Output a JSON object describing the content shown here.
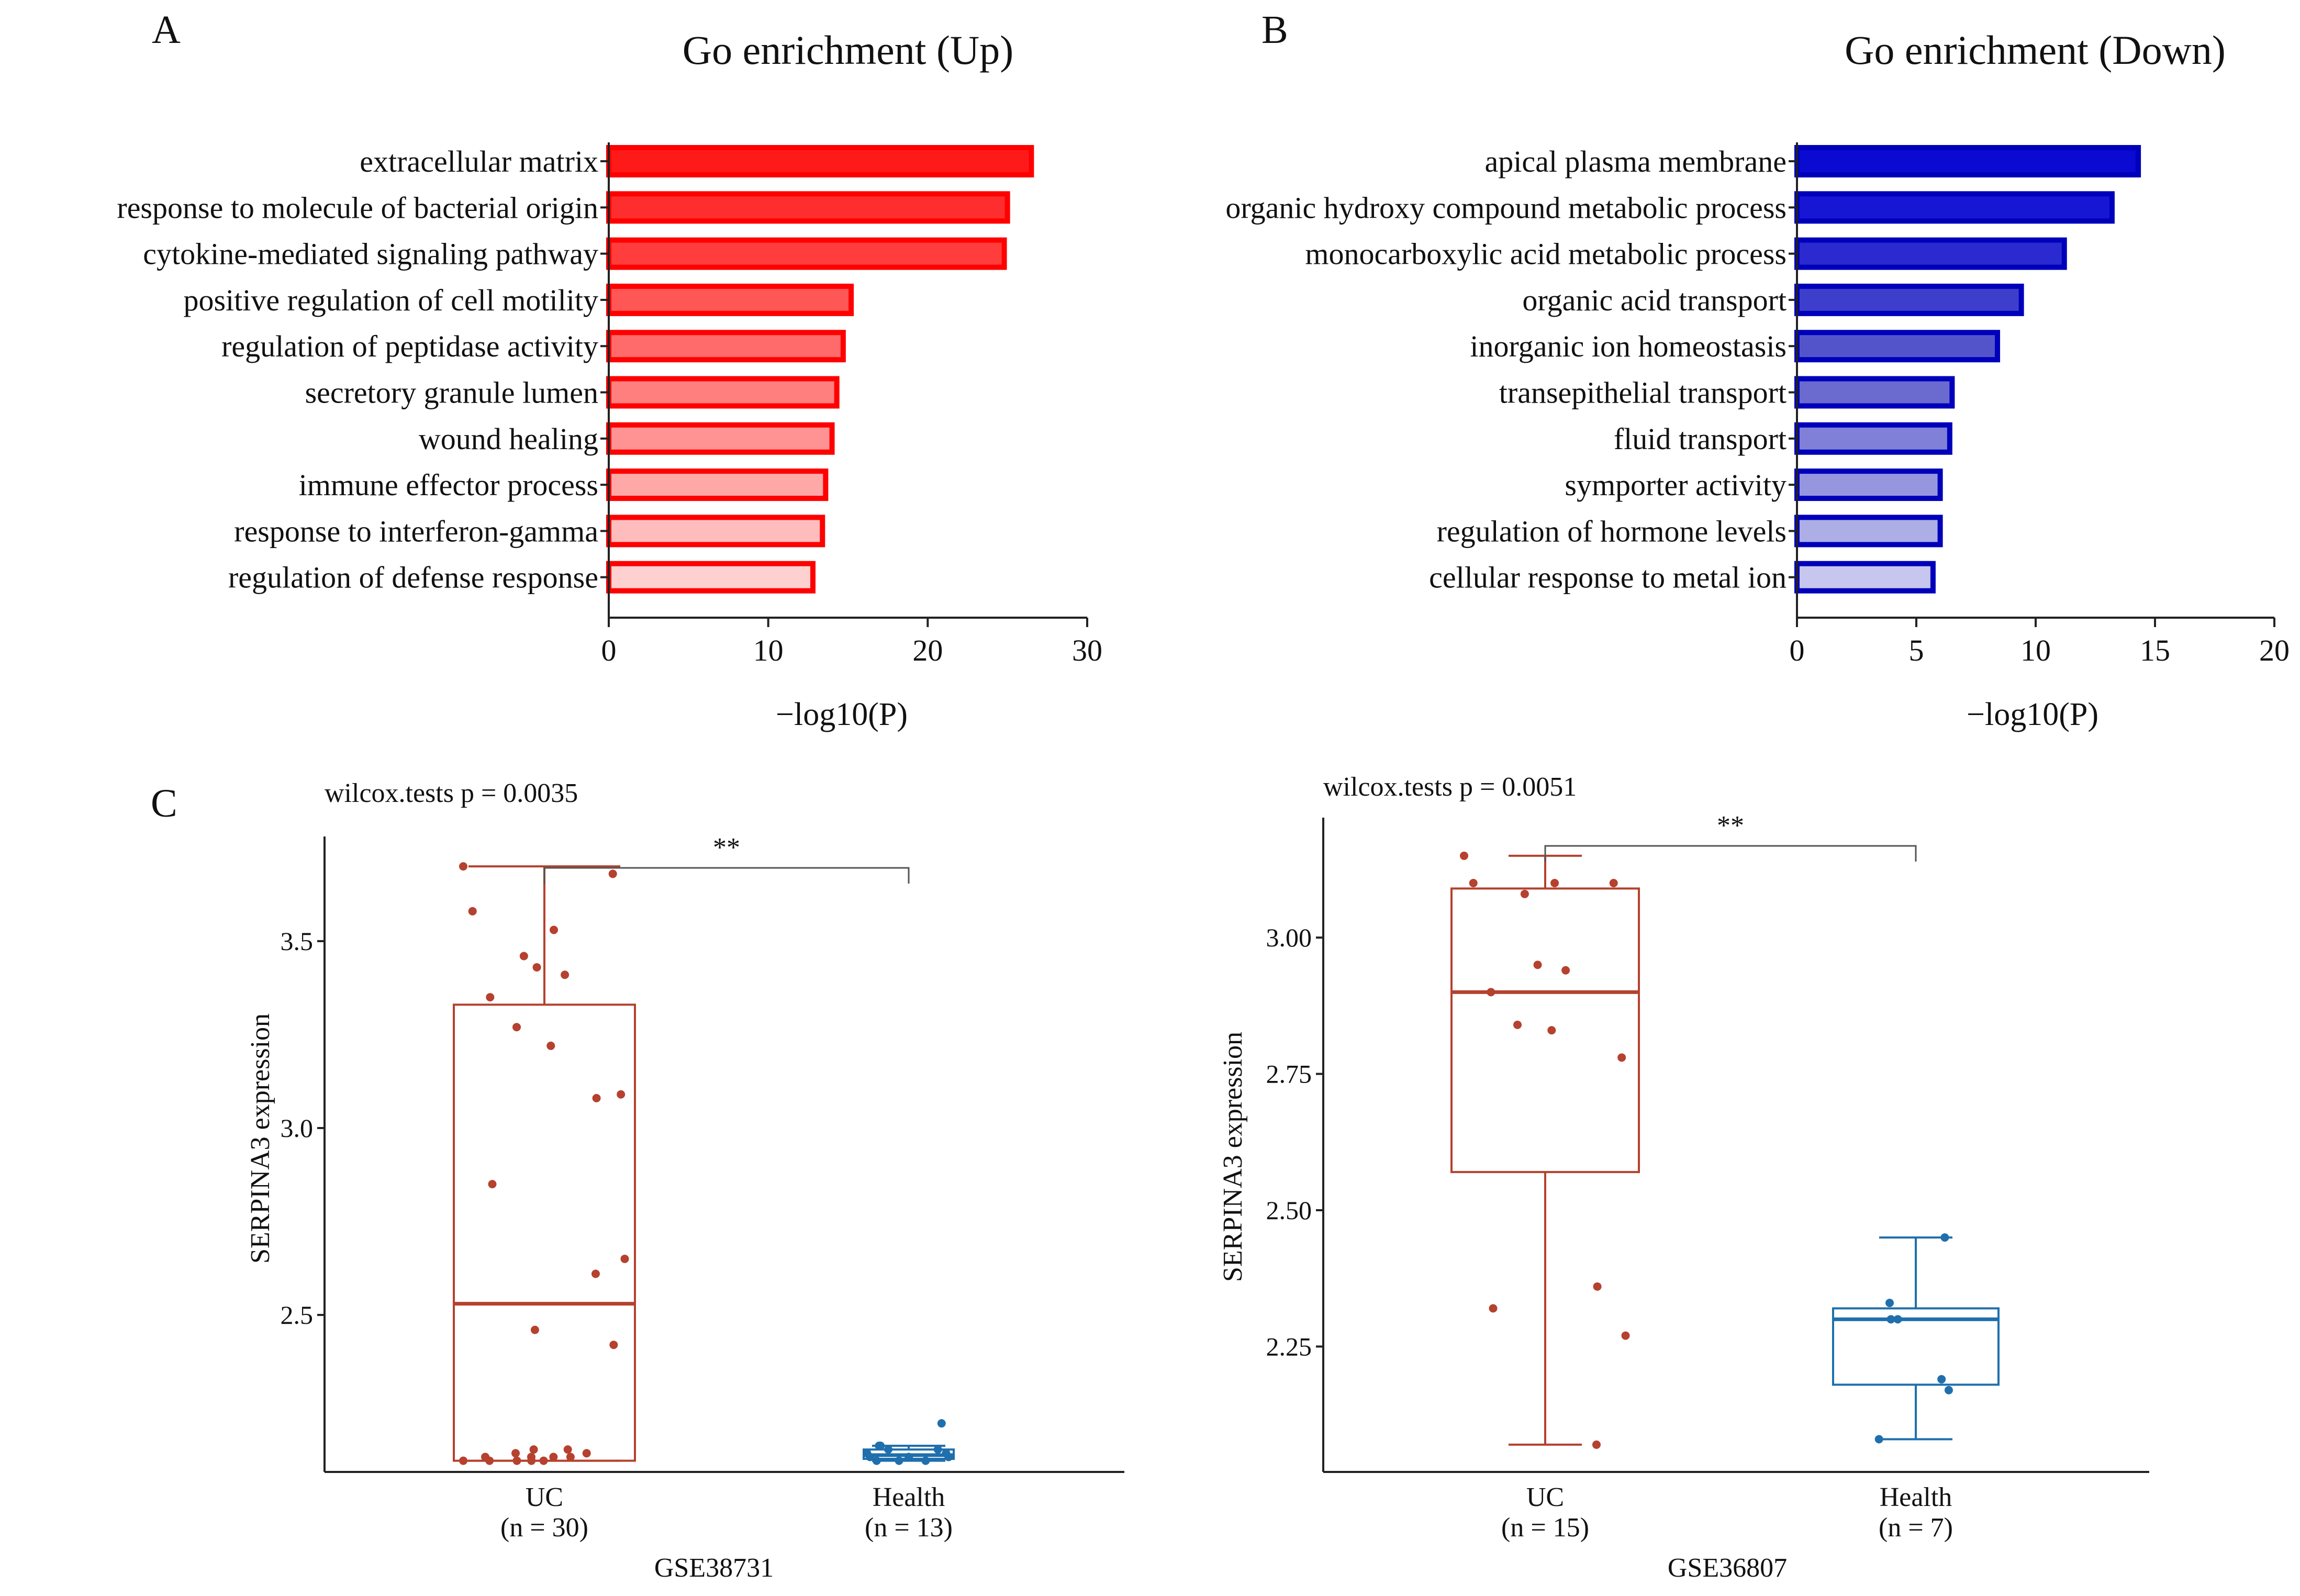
{
  "chart_data": [
    {
      "id": "A",
      "type": "bar",
      "orientation": "horizontal",
      "panel_label": "A",
      "title": "Go enrichment (Up)",
      "xlabel": "−log10(P)",
      "xlim": [
        0,
        30
      ],
      "xticks": [
        0,
        10,
        20,
        30
      ],
      "categories": [
        "extracellular matrix",
        "response to molecule of bacterial origin",
        "cytokine-mediated signaling pathway",
        "positive regulation of cell motility",
        "regulation of peptidase activity",
        "secretory granule lumen",
        "wound healing",
        "immune effector process",
        "response to interferon-gamma",
        "regulation of defense response"
      ],
      "values": [
        26.5,
        25.0,
        24.8,
        15.2,
        14.7,
        14.3,
        14.0,
        13.6,
        13.4,
        12.8
      ],
      "colors": {
        "outline": "#ff0000",
        "fills": [
          "#ff1a1a",
          "#ff2e2e",
          "#ff3d3d",
          "#ff5656",
          "#ff6b6b",
          "#ff7f7f",
          "#ff9393",
          "#ffa8a8",
          "#ffbcbc",
          "#ffd0d0"
        ]
      }
    },
    {
      "id": "B",
      "type": "bar",
      "orientation": "horizontal",
      "panel_label": "B",
      "title": "Go enrichment (Down)",
      "xlabel": "−log10(P)",
      "xlim": [
        0,
        20
      ],
      "xticks": [
        0,
        5,
        10,
        15,
        20
      ],
      "categories": [
        "apical plasma membrane",
        "organic hydroxy compound metabolic process",
        "monocarboxylic acid metabolic process",
        "organic acid transport",
        "inorganic ion homeostasis",
        "transepithelial transport",
        "fluid transport",
        "symporter activity",
        "regulation of hormone levels",
        "cellular response to metal ion"
      ],
      "values": [
        14.3,
        13.2,
        11.2,
        9.4,
        8.4,
        6.5,
        6.4,
        6.0,
        6.0,
        5.7
      ],
      "colors": {
        "outline": "#0000bb",
        "fills": [
          "#0a0ad2",
          "#1616d4",
          "#2a2ad0",
          "#3e3ecc",
          "#5454ca",
          "#6a6acf",
          "#8080d8",
          "#9696df",
          "#aeaee6",
          "#c6c6ee"
        ]
      }
    },
    {
      "id": "C1",
      "type": "box",
      "panel_label": "C",
      "title": "wilcox.tests p = 0.0035",
      "ylabel": "SERPINA3 expression",
      "xlabel": "GSE38731",
      "ylim": [
        2.08,
        3.78
      ],
      "yticks": [
        "2.5",
        "3.0",
        "3.5"
      ],
      "significance": "**",
      "groups": [
        {
          "name": "UC",
          "n_label": "(n = 30)",
          "color": "#b5412e",
          "whisker_low": 2.11,
          "q1": 2.11,
          "median": 2.53,
          "q3": 3.33,
          "whisker_high": 3.7,
          "points": [
            3.7,
            3.68,
            3.58,
            3.53,
            3.46,
            3.43,
            3.41,
            3.35,
            3.27,
            3.22,
            3.09,
            3.08,
            2.85,
            2.65,
            2.61,
            2.46,
            2.42,
            2.14,
            2.14,
            2.13,
            2.13,
            2.12,
            2.12,
            2.12,
            2.12,
            2.11,
            2.11,
            2.11,
            2.11,
            2.11
          ]
        },
        {
          "name": "Health",
          "n_label": "(n = 13)",
          "color": "#1f6fad",
          "whisker_low": 2.11,
          "q1": 2.115,
          "median": 2.125,
          "q3": 2.14,
          "whisker_high": 2.15,
          "points": [
            2.21,
            2.15,
            2.15,
            2.14,
            2.14,
            2.13,
            2.13,
            2.12,
            2.12,
            2.12,
            2.11,
            2.11,
            2.11
          ]
        }
      ]
    },
    {
      "id": "C2",
      "type": "box",
      "panel_label": "",
      "title": "wilcox.tests p = 0.0051",
      "ylabel": "SERPINA3 expression",
      "xlabel": "GSE36807",
      "ylim": [
        2.02,
        3.22
      ],
      "yticks": [
        "2.25",
        "2.50",
        "2.75",
        "3.00"
      ],
      "significance": "**",
      "groups": [
        {
          "name": "UC",
          "n_label": "(n = 15)",
          "color": "#b5412e",
          "whisker_low": 2.07,
          "q1": 2.57,
          "median": 2.9,
          "q3": 3.09,
          "whisker_high": 3.15,
          "points": [
            3.15,
            3.1,
            3.1,
            3.1,
            3.08,
            2.95,
            2.94,
            2.9,
            2.84,
            2.83,
            2.78,
            2.36,
            2.32,
            2.27,
            2.07
          ]
        },
        {
          "name": "Health",
          "n_label": "(n = 7)",
          "color": "#1f6fad",
          "whisker_low": 2.08,
          "q1": 2.18,
          "median": 2.3,
          "q3": 2.32,
          "whisker_high": 2.45,
          "points": [
            2.45,
            2.33,
            2.3,
            2.3,
            2.19,
            2.17,
            2.08
          ]
        }
      ]
    }
  ]
}
